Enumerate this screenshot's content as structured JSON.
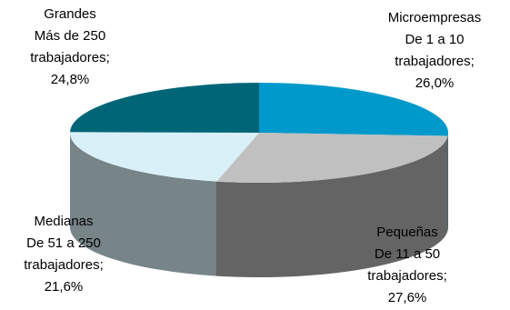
{
  "chart_data": {
    "type": "pie",
    "style": "3d",
    "title": "",
    "slices": [
      {
        "label": [
          "Microempresas",
          "De 1 a 10",
          "trabajadores;",
          "26,0%"
        ],
        "value": 26.0,
        "color": "#0099cc"
      },
      {
        "label": [
          "Pequeñas",
          "De 11 a 50",
          "trabajadores;",
          "27,6%"
        ],
        "value": 27.6,
        "color": "#c0c0c0"
      },
      {
        "label": [
          "Medianas",
          "De 51 a 250",
          "trabajadores;",
          "21,6%"
        ],
        "value": 21.6,
        "color": "#d9f0f8"
      },
      {
        "label": [
          "Grandes",
          "Más de 250",
          "trabajadores;",
          "24,8%"
        ],
        "value": 24.8,
        "color": "#006677"
      }
    ]
  }
}
